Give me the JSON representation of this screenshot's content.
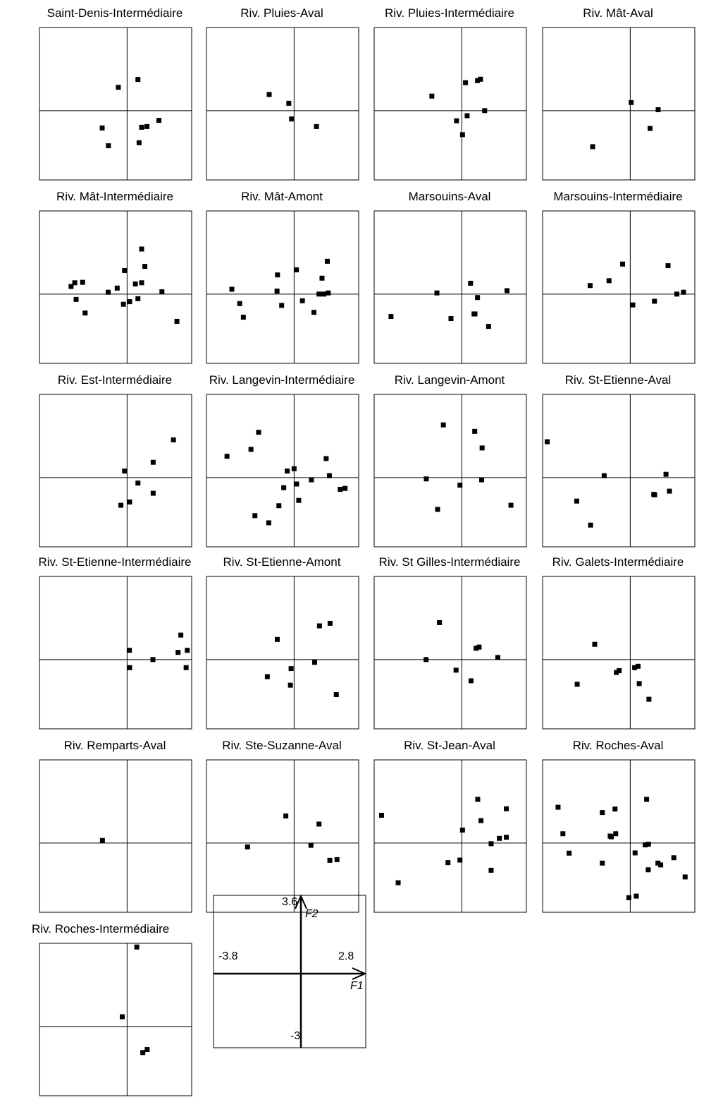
{
  "chart_data": [
    {
      "type": "scatter",
      "title": "Saint-Denis-Intermédiaire",
      "x": [
        -0.38,
        0.47,
        -1.08,
        1.38,
        0.63,
        0.86,
        -0.81,
        0.52
      ],
      "y": [
        1.01,
        1.35,
        -0.75,
        -0.42,
        -0.72,
        -0.69,
        -1.52,
        -1.39
      ]
    },
    {
      "type": "scatter",
      "title": "Riv. Pluies-Aval",
      "x": [
        -1.08,
        -0.23,
        -0.11,
        0.97
      ],
      "y": [
        0.7,
        0.32,
        -0.36,
        -0.69
      ]
    },
    {
      "type": "scatter",
      "title": "Riv. Pluies-Intermédiaire",
      "x": [
        -1.3,
        0.16,
        0.68,
        0.81,
        0.99,
        0.23,
        -0.23,
        0.03
      ],
      "y": [
        0.63,
        1.21,
        1.3,
        1.36,
        0.0,
        -0.22,
        -0.44,
        -1.04
      ]
    },
    {
      "type": "scatter",
      "title": "Riv. Mât-Aval",
      "x": [
        0.04,
        1.21,
        0.86,
        -1.63
      ],
      "y": [
        0.35,
        0.04,
        -0.77,
        -1.56
      ]
    },
    {
      "type": "scatter",
      "title": "Riv. Mât-Intermédiaire",
      "x": [
        0.63,
        0.77,
        -0.11,
        -1.93,
        -2.27,
        0.63,
        0.36,
        -0.43,
        -2.43,
        -0.82,
        1.51,
        -2.21,
        -1.82,
        0.47,
        0.11,
        -0.16,
        2.16
      ],
      "y": [
        1.95,
        1.2,
        1.02,
        0.51,
        0.49,
        0.49,
        0.44,
        0.26,
        0.33,
        0.08,
        0.1,
        -0.23,
        -0.82,
        -0.2,
        -0.33,
        -0.44,
        -1.18
      ]
    },
    {
      "type": "scatter",
      "title": "Riv. Mât-Amont",
      "x": [
        1.44,
        0.1,
        -0.72,
        1.21,
        -2.7,
        -0.74,
        1.48,
        1.29,
        1.08,
        -2.36,
        0.36,
        -0.54,
        0.86,
        -2.2
      ],
      "y": [
        1.42,
        1.05,
        0.83,
        0.69,
        0.21,
        0.13,
        0.05,
        0.0,
        0.0,
        -0.41,
        -0.29,
        -0.49,
        -0.79,
        -1.0
      ]
    },
    {
      "type": "scatter",
      "title": "Marsouins-Aval",
      "x": [
        0.38,
        1.96,
        -1.08,
        0.68,
        0.57,
        -3.07,
        -0.47,
        0.53,
        1.16
      ],
      "y": [
        0.47,
        0.15,
        0.05,
        -0.15,
        -0.86,
        -0.97,
        -1.06,
        -0.86,
        -1.4
      ]
    },
    {
      "type": "scatter",
      "title": "Marsouins-Intermédiaire",
      "x": [
        -0.33,
        1.64,
        -0.92,
        -1.74,
        2.31,
        2.02,
        1.05,
        0.11
      ],
      "y": [
        1.3,
        1.23,
        0.58,
        0.37,
        0.08,
        0.0,
        -0.31,
        -0.47
      ]
    },
    {
      "type": "scatter",
      "title": "Riv. Est-Intermédiaire",
      "x": [
        2.01,
        1.13,
        -0.11,
        0.47,
        1.13,
        0.11,
        -0.27
      ],
      "y": [
        1.63,
        0.66,
        0.28,
        -0.24,
        -0.68,
        -1.06,
        -1.2
      ]
    },
    {
      "type": "scatter",
      "title": "Riv. Langevin-Intermédiaire",
      "x": [
        -1.54,
        -1.87,
        -2.91,
        1.39,
        0.0,
        -0.3,
        1.53,
        0.75,
        0.11,
        -0.45,
        2.0,
        2.21,
        0.2,
        -0.66,
        -1.7,
        -1.1
      ],
      "y": [
        1.96,
        1.22,
        0.92,
        0.82,
        0.38,
        0.28,
        0.08,
        -0.1,
        -0.28,
        -0.44,
        -0.51,
        -0.47,
        -0.99,
        -1.22,
        -1.65,
        -1.96
      ]
    },
    {
      "type": "scatter",
      "title": "Riv. Langevin-Amont",
      "x": [
        -0.8,
        0.56,
        0.88,
        -1.54,
        -0.08,
        0.86,
        2.13,
        -1.05
      ],
      "y": [
        2.28,
        2.0,
        1.28,
        -0.06,
        -0.33,
        -0.1,
        -1.2,
        -1.38
      ]
    },
    {
      "type": "scatter",
      "title": "Riv. St-Etienne-Aval",
      "x": [
        -3.6,
        -1.13,
        1.55,
        1.02,
        1.06,
        1.7,
        -2.32,
        -1.72
      ],
      "y": [
        1.55,
        0.08,
        0.14,
        -0.73,
        -0.75,
        -0.59,
        -1.02,
        -2.06
      ]
    },
    {
      "type": "scatter",
      "title": "Riv. St-Etienne-Intermédiaire",
      "x": [
        2.33,
        0.1,
        2.21,
        2.61,
        1.12,
        0.11,
        2.56
      ],
      "y": [
        1.06,
        0.4,
        0.31,
        0.4,
        0.0,
        -0.35,
        -0.35
      ]
    },
    {
      "type": "scatter",
      "title": "Riv. St-Etienne-Amont",
      "x": [
        1.56,
        1.1,
        -0.73,
        0.89,
        -0.13,
        -1.16,
        -0.16,
        1.83
      ],
      "y": [
        1.57,
        1.46,
        0.87,
        -0.12,
        -0.39,
        -0.74,
        -1.11,
        -1.52
      ]
    },
    {
      "type": "scatter",
      "title": "Riv. St Gilles-Intermédiaire",
      "x": [
        -0.97,
        0.62,
        0.75,
        1.56,
        -1.55,
        -0.25,
        0.4
      ],
      "y": [
        1.6,
        0.49,
        0.54,
        0.09,
        0.0,
        -0.46,
        -0.92
      ]
    },
    {
      "type": "scatter",
      "title": "Riv. Galets-Intermédiaire",
      "x": [
        -1.54,
        -0.6,
        -0.48,
        0.19,
        0.34,
        -2.3,
        0.39,
        0.81
      ],
      "y": [
        0.66,
        -0.56,
        -0.48,
        -0.35,
        -0.29,
        -1.07,
        -1.04,
        -1.72
      ]
    },
    {
      "type": "scatter",
      "title": "Riv. Remparts-Aval",
      "x": [
        -1.07
      ],
      "y": [
        0.11
      ]
    },
    {
      "type": "scatter",
      "title": "Riv. Ste-Suzanne-Aval",
      "x": [
        -0.36,
        1.08,
        -2.02,
        0.73,
        1.55,
        1.86
      ],
      "y": [
        1.17,
        0.82,
        -0.17,
        -0.1,
        -0.75,
        -0.72
      ]
    },
    {
      "type": "scatter",
      "title": "Riv. St-Jean-Aval",
      "x": [
        0.69,
        1.93,
        -3.48,
        0.83,
        0.03,
        1.63,
        1.93,
        1.27,
        -0.6,
        -0.08,
        1.27,
        -2.76
      ],
      "y": [
        1.89,
        1.48,
        1.2,
        0.97,
        0.56,
        0.2,
        0.25,
        -0.03,
        -0.85,
        -0.74,
        -1.18,
        -1.72
      ]
    },
    {
      "type": "scatter",
      "title": "Riv. Roches-Aval",
      "x": [
        0.71,
        -3.13,
        -1.21,
        -0.66,
        -2.92,
        -0.63,
        -0.87,
        -0.82,
        0.65,
        0.79,
        0.21,
        -2.65,
        -1.21,
        1.2,
        1.89,
        0.78,
        1.32,
        2.38,
        0.26,
        -0.06
      ],
      "y": [
        1.89,
        1.55,
        1.32,
        1.47,
        0.4,
        0.4,
        0.3,
        0.27,
        -0.08,
        -0.05,
        -0.43,
        -0.44,
        -0.87,
        -0.87,
        -0.64,
        -1.16,
        -0.95,
        -1.47,
        -2.3,
        -2.37
      ]
    },
    {
      "type": "scatter",
      "title": "Riv. Roches-Intermédiaire",
      "x": [
        0.42,
        -0.21,
        0.87,
        0.68
      ],
      "y": [
        3.44,
        0.42,
        -1.0,
        -1.13
      ]
    }
  ],
  "scale_key": {
    "x_axis_name": "F1",
    "y_axis_name": "F2",
    "xlim": [
      -3.8,
      2.8
    ],
    "ylim": [
      -3,
      3.6
    ],
    "x_min_label": "-3.8",
    "x_max_label": "2.8",
    "y_min_label": "-3",
    "y_max_label": "3.6"
  }
}
